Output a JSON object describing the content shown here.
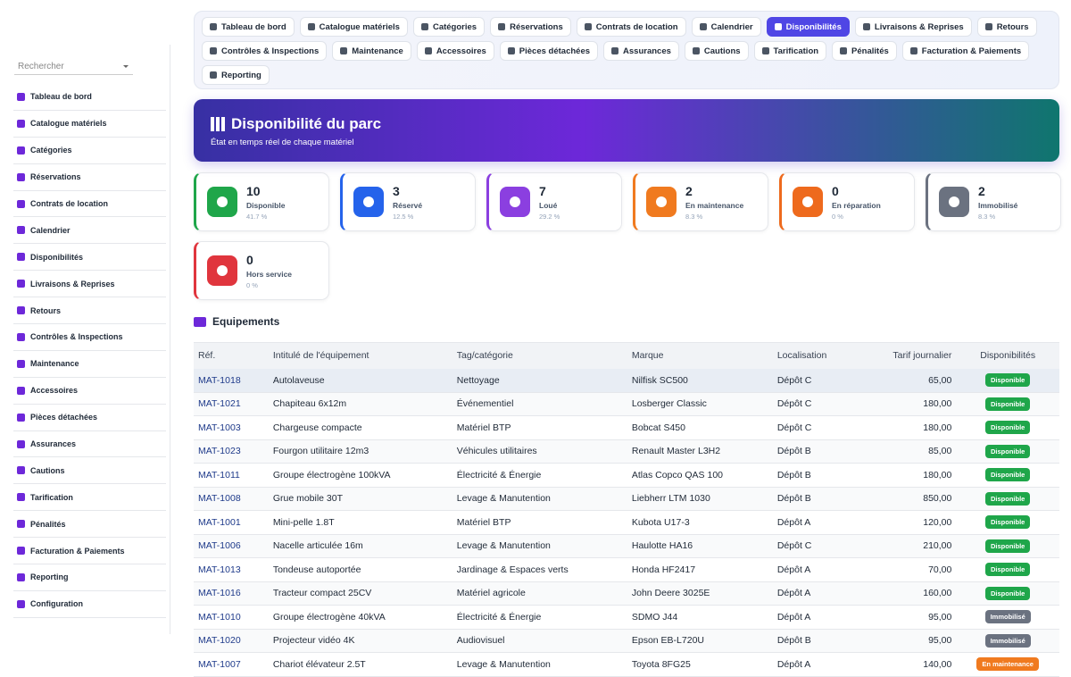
{
  "sidebar": {
    "search_placeholder": "Rechercher",
    "items": [
      "Tableau de bord",
      "Catalogue matériels",
      "Catégories",
      "Réservations",
      "Contrats de location",
      "Calendrier",
      "Disponibilités",
      "Livraisons & Reprises",
      "Retours",
      "Contrôles & Inspections",
      "Maintenance",
      "Accessoires",
      "Pièces détachées",
      "Assurances",
      "Cautions",
      "Tarification",
      "Pénalités",
      "Facturation & Paiements",
      "Reporting",
      "Configuration"
    ]
  },
  "tabs": {
    "active": 6,
    "items": [
      "Tableau de bord",
      "Catalogue matériels",
      "Catégories",
      "Réservations",
      "Contrats de location",
      "Calendrier",
      "Disponibilités",
      "Livraisons & Reprises",
      "Retours",
      "Contrôles & Inspections",
      "Maintenance",
      "Accessoires",
      "Pièces détachées",
      "Assurances",
      "Cautions",
      "Tarification",
      "Pénalités",
      "Facturation & Paiements",
      "Reporting"
    ]
  },
  "banner": {
    "title": "Disponibilité du parc",
    "subtitle": "État en temps réel de chaque matériel"
  },
  "stats": [
    {
      "value": "10",
      "label": "Disponible",
      "percent": "41.7 %",
      "color": "#1fa64a"
    },
    {
      "value": "3",
      "label": "Réservé",
      "percent": "12.5 %",
      "color": "#2563eb"
    },
    {
      "value": "7",
      "label": "Loué",
      "percent": "29.2 %",
      "color": "#8b3fe0"
    },
    {
      "value": "2",
      "label": "En maintenance",
      "percent": "8.3 %",
      "color": "#f07a1f"
    },
    {
      "value": "0",
      "label": "En réparation",
      "percent": "0 %",
      "color": "#ee6a1d"
    },
    {
      "value": "2",
      "label": "Immobilisé",
      "percent": "8.3 %",
      "color": "#6b7280"
    },
    {
      "value": "0",
      "label": "Hors service",
      "percent": "0 %",
      "color": "#e0353d"
    }
  ],
  "section_title": "Equipements",
  "table": {
    "headers": [
      "Réf.",
      "Intitulé de l'équipement",
      "Tag/catégorie",
      "Marque",
      "Localisation",
      "Tarif journalier",
      "Disponibilités"
    ],
    "rows": [
      [
        "MAT-1018",
        "Autolaveuse",
        "Nettoyage",
        "Nilfisk SC500",
        "Dépôt C",
        "65,00",
        "Disponible"
      ],
      [
        "MAT-1021",
        "Chapiteau 6x12m",
        "Événementiel",
        "Losberger Classic",
        "Dépôt C",
        "180,00",
        "Disponible"
      ],
      [
        "MAT-1003",
        "Chargeuse compacte",
        "Matériel BTP",
        "Bobcat S450",
        "Dépôt C",
        "180,00",
        "Disponible"
      ],
      [
        "MAT-1023",
        "Fourgon utilitaire 12m3",
        "Véhicules utilitaires",
        "Renault Master L3H2",
        "Dépôt B",
        "85,00",
        "Disponible"
      ],
      [
        "MAT-1011",
        "Groupe électrogène 100kVA",
        "Électricité & Énergie",
        "Atlas Copco QAS 100",
        "Dépôt B",
        "180,00",
        "Disponible"
      ],
      [
        "MAT-1008",
        "Grue mobile 30T",
        "Levage & Manutention",
        "Liebherr LTM 1030",
        "Dépôt B",
        "850,00",
        "Disponible"
      ],
      [
        "MAT-1001",
        "Mini-pelle 1.8T",
        "Matériel BTP",
        "Kubota U17-3",
        "Dépôt A",
        "120,00",
        "Disponible"
      ],
      [
        "MAT-1006",
        "Nacelle articulée 16m",
        "Levage & Manutention",
        "Haulotte HA16",
        "Dépôt C",
        "210,00",
        "Disponible"
      ],
      [
        "MAT-1013",
        "Tondeuse autoportée",
        "Jardinage & Espaces verts",
        "Honda HF2417",
        "Dépôt A",
        "70,00",
        "Disponible"
      ],
      [
        "MAT-1016",
        "Tracteur compact 25CV",
        "Matériel agricole",
        "John Deere 3025E",
        "Dépôt A",
        "160,00",
        "Disponible"
      ],
      [
        "MAT-1010",
        "Groupe électrogène 40kVA",
        "Électricité & Énergie",
        "SDMO J44",
        "Dépôt A",
        "95,00",
        "Immobilisé"
      ],
      [
        "MAT-1020",
        "Projecteur vidéo 4K",
        "Audiovisuel",
        "Epson EB-L720U",
        "Dépôt B",
        "95,00",
        "Immobilisé"
      ],
      [
        "MAT-1007",
        "Chariot élévateur 2.5T",
        "Levage & Manutention",
        "Toyota 8FG25",
        "Dépôt A",
        "140,00",
        "En maintenance"
      ]
    ]
  }
}
